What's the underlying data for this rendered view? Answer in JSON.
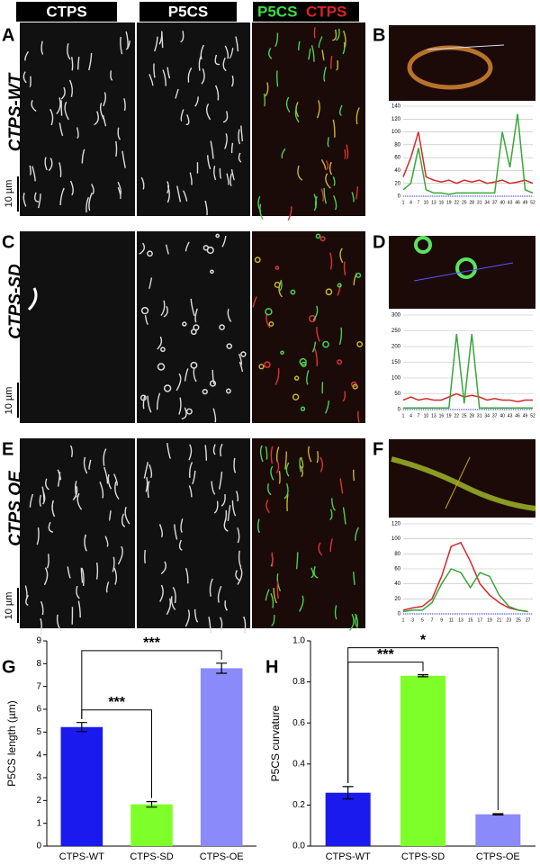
{
  "header": {
    "col1": "CTPS",
    "col2": "P5CS",
    "col3a": "P5CS",
    "col3b": "CTPS"
  },
  "panels": {
    "A": "A",
    "B": "B",
    "C": "C",
    "D": "D",
    "E": "E",
    "F": "F"
  },
  "rows": [
    "CTPS-WT",
    "CTPS-SD",
    "CTPS OE"
  ],
  "scale_bar": "10 µm",
  "chart_data": [
    {
      "type": "line",
      "x": [
        1,
        4,
        7,
        10,
        13,
        16,
        19,
        22,
        25,
        28,
        31,
        34,
        37,
        40,
        43,
        46,
        49,
        52
      ],
      "xlim": [
        1,
        52
      ],
      "ylim": [
        0,
        140
      ],
      "yticks": [
        0,
        20,
        40,
        60,
        80,
        100,
        120,
        140
      ],
      "grid": true,
      "series": [
        {
          "color": "#d42a2a",
          "values": [
            30,
            60,
            100,
            30,
            25,
            22,
            25,
            20,
            25,
            22,
            25,
            20,
            22,
            25,
            20,
            22,
            25,
            20
          ]
        },
        {
          "color": "#3aa63a",
          "values": [
            10,
            20,
            75,
            10,
            5,
            5,
            3,
            5,
            5,
            5,
            5,
            5,
            5,
            100,
            45,
            128,
            10,
            5
          ]
        }
      ]
    },
    {
      "type": "line",
      "x": [
        1,
        4,
        7,
        10,
        13,
        16,
        19,
        22,
        25,
        28,
        31,
        34,
        37,
        40,
        43,
        46,
        49,
        52
      ],
      "xlim": [
        1,
        52
      ],
      "ylim": [
        0,
        300
      ],
      "yticks": [
        0,
        50,
        100,
        150,
        200,
        250,
        300
      ],
      "grid": true,
      "series": [
        {
          "color": "#d42a2a",
          "values": [
            30,
            40,
            30,
            35,
            30,
            30,
            40,
            50,
            40,
            45,
            40,
            30,
            35,
            30,
            30,
            25,
            30,
            30
          ]
        },
        {
          "color": "#3aa63a",
          "values": [
            5,
            5,
            5,
            5,
            5,
            5,
            5,
            240,
            20,
            240,
            5,
            5,
            5,
            5,
            5,
            5,
            5,
            5
          ]
        }
      ]
    },
    {
      "type": "line",
      "x": [
        1,
        3,
        5,
        7,
        9,
        11,
        13,
        15,
        17,
        19,
        21,
        23,
        25,
        27
      ],
      "xlim": [
        1,
        28
      ],
      "ylim": [
        0,
        120
      ],
      "yticks": [
        0,
        20,
        40,
        60,
        80,
        100,
        120
      ],
      "grid": true,
      "series": [
        {
          "color": "#d42a2a",
          "values": [
            5,
            8,
            10,
            20,
            50,
            90,
            95,
            70,
            40,
            25,
            15,
            8,
            5,
            3
          ]
        },
        {
          "color": "#3aa63a",
          "values": [
            3,
            5,
            5,
            15,
            40,
            60,
            55,
            35,
            55,
            50,
            25,
            10,
            5,
            3
          ]
        }
      ]
    },
    {
      "type": "bar",
      "panel": "G",
      "y_label": "P5CS length (µm)",
      "categories": [
        "CTPS-WT",
        "CTPS-SD",
        "CTPS-OE"
      ],
      "values": [
        5.22,
        1.83,
        7.8
      ],
      "errors": [
        0.2,
        0.12,
        0.22
      ],
      "colors": [
        "#1a1aee",
        "#7fff2a",
        "#8a8afa"
      ],
      "ylim": [
        0,
        9
      ],
      "yticks": [
        0,
        1,
        2,
        3,
        4,
        5,
        6,
        7,
        8,
        9
      ],
      "annotations": [
        {
          "text": "***",
          "between": [
            "CTPS-WT",
            "CTPS-SD"
          ]
        },
        {
          "text": "***",
          "between": [
            "CTPS-WT",
            "CTPS-OE"
          ]
        }
      ]
    },
    {
      "type": "bar",
      "panel": "H",
      "y_label": "P5CS curvature",
      "categories": [
        "CTPS-WT",
        "CTPS-SD",
        "CTPS-OE"
      ],
      "values": [
        0.26,
        0.83,
        0.155
      ],
      "errors": [
        0.03,
        0.005,
        0.003
      ],
      "colors": [
        "#1a1aee",
        "#7fff2a",
        "#8a8afa"
      ],
      "ylim": [
        0,
        1
      ],
      "yticks": [
        {
          "value": 0,
          "label": "0.0"
        },
        0.2,
        0.4,
        0.6,
        0.8,
        {
          "value": 1,
          "label": "1.0"
        }
      ],
      "annotations": [
        {
          "text": "***",
          "between": [
            "CTPS-WT",
            "CTPS-SD"
          ]
        },
        {
          "text": "*",
          "between": [
            "CTPS-WT",
            "CTPS-OE"
          ]
        }
      ]
    }
  ]
}
